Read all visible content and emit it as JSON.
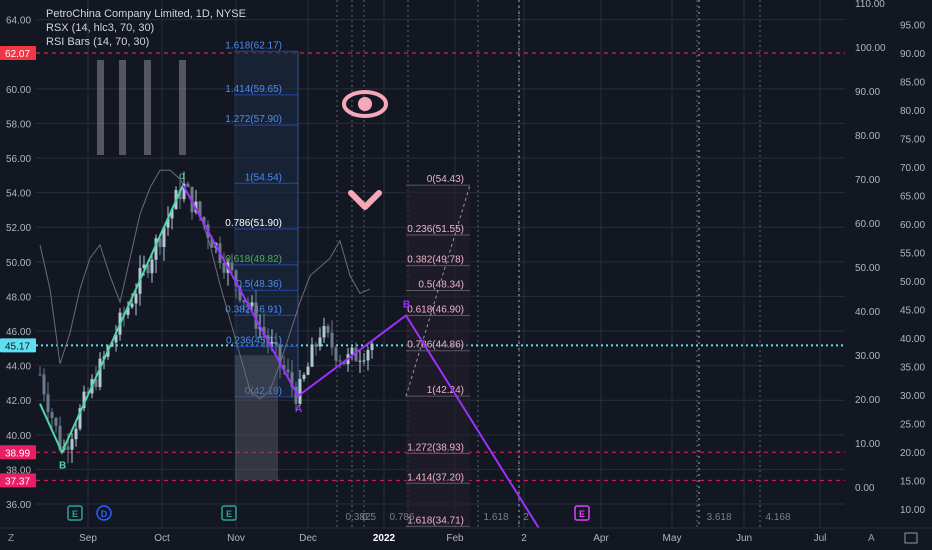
{
  "header": {
    "title": "PetroChina Company Limited, 1D, NYSE",
    "indicator1": "RSX (14, hlc3, 70, 30)",
    "indicator2": "RSI Bars (14, 70, 30)"
  },
  "colors": {
    "background": "#131722",
    "up": "#b2c7d6",
    "down": "#6b7b8c",
    "impulse": "#52d6a3",
    "wave": "#9b30ff",
    "fib_blue": "#2962ff",
    "pink": "#f48fb1",
    "price_tag_red": "#f23645",
    "price_tag_pink": "#e91e63",
    "price_tag_cyan": "#5ee0f2"
  },
  "chart_data": {
    "type": "candlestick",
    "title": "PetroChina Company Limited, 1D, NYSE",
    "x_ticks": [
      "Sep",
      "Oct",
      "Nov",
      "Dec",
      "2022",
      "Feb",
      "2",
      "Apr",
      "May",
      "Jun",
      "Jul"
    ],
    "left_axis_ticks": [
      "64.00",
      "60.00",
      "58.00",
      "56.00",
      "54.00",
      "52.00",
      "50.00",
      "48.00",
      "46.00",
      "44.00",
      "42.00",
      "40.00",
      "38.00",
      "36.00"
    ],
    "left_axis_tags": [
      {
        "label": "62.07",
        "value": 62.07,
        "color": "#f23645"
      },
      {
        "label": "45.17",
        "value": 45.17,
        "color": "#5ee0f2"
      },
      {
        "label": "38.99",
        "value": 38.99,
        "color": "#e91e63"
      },
      {
        "label": "37.37",
        "value": 37.37,
        "color": "#e91e63"
      }
    ],
    "mid_axis_ticks": [
      "110.00",
      "100.00",
      "90.00",
      "80.00",
      "70.00",
      "60.00",
      "50.00",
      "40.00",
      "30.00",
      "20.00",
      "10.00",
      "0.00"
    ],
    "right_axis_ticks": [
      "95.00",
      "90.00",
      "85.00",
      "80.00",
      "75.00",
      "70.00",
      "65.00",
      "60.00",
      "55.00",
      "50.00",
      "45.00",
      "40.00",
      "35.00",
      "30.00",
      "25.00",
      "20.00",
      "15.00",
      "10.00"
    ],
    "ylim": [
      35.5,
      65.5
    ],
    "waves": [
      {
        "label": "B",
        "date": "2021-08-27",
        "price": 38.99
      },
      {
        "label": "",
        "date": "2021-10-06",
        "price": 54.43
      },
      {
        "label": "A",
        "date": "2021-11-26",
        "price": 42.24
      },
      {
        "label": "B",
        "date": "2022-01-10",
        "price": 46.9
      },
      {
        "label": "",
        "date": "2022-02-28",
        "price": 34.5
      }
    ],
    "fib_left": [
      {
        "label": "1.618(62.17)",
        "value": 62.17
      },
      {
        "label": "1.414(59.65)",
        "value": 59.65
      },
      {
        "label": "1.272(57.90)",
        "value": 57.9
      },
      {
        "label": "1(54.54)",
        "value": 54.54
      },
      {
        "label": "0.786(51.90)",
        "value": 51.9
      },
      {
        "label": "0.618(49.82)",
        "value": 49.82
      },
      {
        "label": "0.5(48.36)",
        "value": 48.36
      },
      {
        "label": "0.382(46.91)",
        "value": 46.91
      },
      {
        "label": "0.236(45.11)",
        "value": 45.11
      },
      {
        "label": "0(42.19)",
        "value": 42.19
      }
    ],
    "fib_right": [
      {
        "label": "0(54.43)",
        "value": 54.43
      },
      {
        "label": "0.236(51.55)",
        "value": 51.55
      },
      {
        "label": "0.382(49.78)",
        "value": 49.78
      },
      {
        "label": "0.5(48.34)",
        "value": 48.34
      },
      {
        "label": "0.618(46.90)",
        "value": 46.9
      },
      {
        "label": "0.786(44.86)",
        "value": 44.86
      },
      {
        "label": "1(42.24)",
        "value": 42.24
      },
      {
        "label": "1.272(38.93)",
        "value": 38.93
      },
      {
        "label": "1.414(37.20)",
        "value": 37.2
      },
      {
        "label": "1.618(34.71)",
        "value": 34.71
      }
    ],
    "time_fib_labels": [
      "0.382",
      "0.5",
      "0.786",
      "1.618",
      "2",
      "3.618",
      "4.168"
    ],
    "event_badges": [
      "E",
      "D",
      "E",
      "E"
    ]
  },
  "footer": {
    "left_icon": "Z",
    "right_icon": "A"
  },
  "icons": [
    "eye-icon",
    "chevron-down-icon"
  ]
}
